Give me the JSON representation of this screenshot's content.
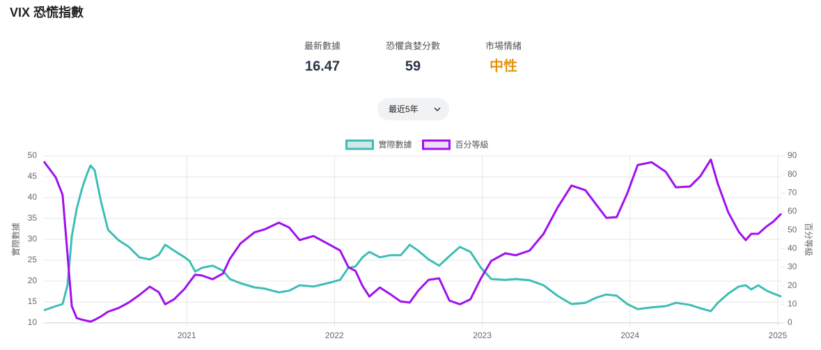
{
  "header": {
    "title": "VIX 恐慌指數"
  },
  "stats": [
    {
      "label": "最新數據",
      "value": 16.47
    },
    {
      "label": "恐懼貪婪分數",
      "value": 59
    },
    {
      "label": "市場情緒",
      "value": "中性"
    }
  ],
  "selector": {
    "label": "最近5年"
  },
  "chart_data": {
    "type": "line",
    "y_label": "實際數據",
    "y2_label": "百分等級",
    "x": [
      2020.033,
      2020.113,
      2020.16,
      2020.193,
      2020.222,
      2020.255,
      2020.292,
      2020.325,
      2020.349,
      2020.377,
      2020.42,
      2020.467,
      2020.538,
      2020.608,
      2020.679,
      2020.75,
      2020.811,
      2020.854,
      2020.915,
      2020.986,
      2021.019,
      2021.057,
      2021.104,
      2021.175,
      2021.245,
      2021.292,
      2021.363,
      2021.458,
      2021.528,
      2021.623,
      2021.693,
      2021.764,
      2021.858,
      2021.953,
      2022.038,
      2022.094,
      2022.142,
      2022.189,
      2022.236,
      2022.307,
      2022.377,
      2022.448,
      2022.509,
      2022.566,
      2022.637,
      2022.708,
      2022.778,
      2022.849,
      2022.92,
      2022.991,
      2023.061,
      2023.156,
      2023.226,
      2023.321,
      2023.415,
      2023.509,
      2023.604,
      2023.698,
      2023.769,
      2023.84,
      2023.91,
      2023.981,
      2024.052,
      2024.146,
      2024.241,
      2024.311,
      2024.406,
      2024.476,
      2024.547,
      2024.594,
      2024.665,
      2024.736,
      2024.783,
      2024.821,
      2024.868,
      2024.925,
      2024.972,
      2025.024
    ],
    "series": [
      {
        "name": "實際數據",
        "color": "#3dbdb5",
        "axis": "y",
        "values": [
          13,
          14,
          14.5,
          19,
          30.7,
          37.3,
          42.3,
          45.7,
          47.7,
          46.5,
          39,
          32.3,
          29.8,
          28.2,
          25.7,
          25.2,
          26.3,
          28.7,
          27.3,
          25.7,
          24.8,
          22.3,
          23.2,
          23.7,
          22.5,
          20.5,
          19.5,
          18.5,
          18.2,
          17.3,
          17.7,
          19,
          18.7,
          19.5,
          20.3,
          23.2,
          23.5,
          25.7,
          27,
          25.7,
          26.2,
          26.2,
          28.7,
          27.3,
          25.2,
          23.7,
          26,
          28.2,
          27,
          23.2,
          20.5,
          20.3,
          20.5,
          20.2,
          19,
          16.5,
          14.5,
          14.8,
          16,
          16.8,
          16.5,
          14.5,
          13.3,
          13.7,
          14,
          14.8,
          14.3,
          13.5,
          12.8,
          14.8,
          17,
          18.7,
          19,
          18,
          19,
          17.7,
          17,
          16.3
        ]
      },
      {
        "name": "百分等級",
        "color": "#a00fef",
        "axis": "y2",
        "values": [
          87,
          78.4,
          69,
          37,
          9,
          2.6,
          1.7,
          1.1,
          0.7,
          1.6,
          3.5,
          6,
          8,
          11,
          15,
          19.5,
          16.5,
          10,
          12.7,
          18.4,
          22,
          26,
          25.5,
          23.5,
          26.6,
          34.5,
          42.7,
          48.8,
          50.4,
          54,
          51.4,
          44.6,
          46.8,
          42.7,
          39,
          30,
          28,
          20,
          14.2,
          19.1,
          15.5,
          11.5,
          11,
          17.3,
          23.2,
          24,
          12,
          10,
          12.7,
          24,
          33.4,
          37.5,
          36.4,
          39,
          48,
          62,
          74,
          71.5,
          64,
          56.6,
          57,
          69.7,
          85.1,
          86.6,
          81.5,
          73,
          73.5,
          79,
          88,
          75,
          59.6,
          49.1,
          44.6,
          48,
          48,
          52,
          54.7,
          58.9
        ]
      }
    ],
    "xlim": [
      2020.033,
      2025.024
    ],
    "xticks": [
      2021,
      2022,
      2023,
      2024,
      2025
    ],
    "ylim": [
      10,
      50
    ],
    "yticks": [
      10,
      15,
      20,
      25,
      30,
      35,
      40,
      45,
      50
    ],
    "y2lim": [
      0,
      90
    ],
    "y2ticks": [
      0,
      10,
      20,
      30,
      40,
      50,
      60,
      70,
      80,
      90
    ],
    "grid": true,
    "legend": "top"
  }
}
